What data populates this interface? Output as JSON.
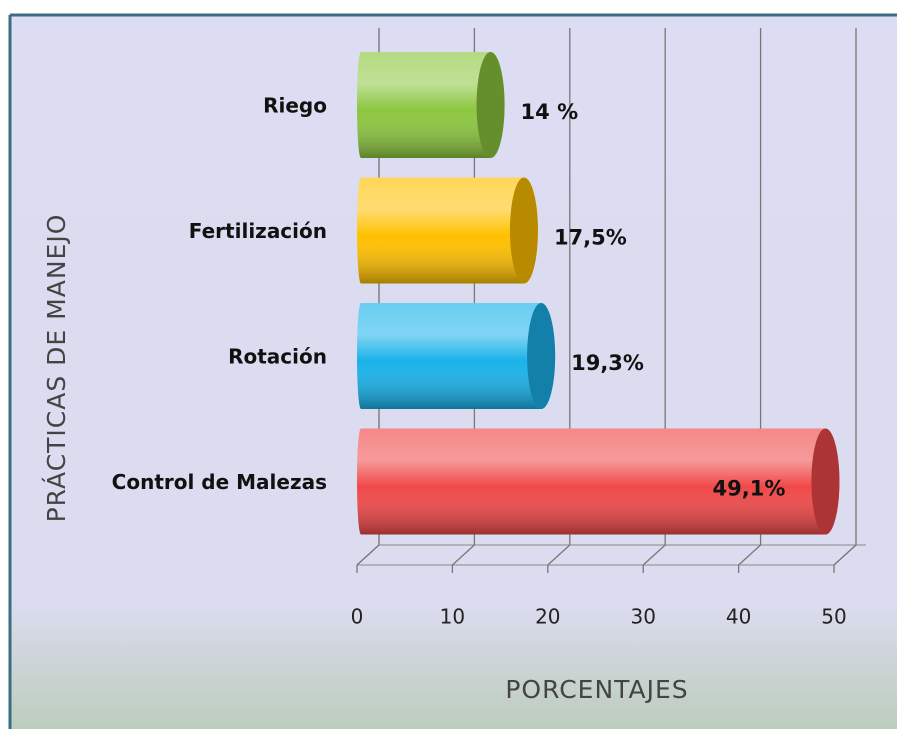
{
  "chart_data": {
    "type": "bar",
    "orientation": "horizontal",
    "x_label": "PORCENTAJES",
    "y_label": "PRÁCTICAS DE MANEJO",
    "categories": [
      "Riego",
      "Fertilización",
      "Rotación",
      "Control de Malezas"
    ],
    "series": [
      {
        "colors": [
          "#8cc63f",
          "#ffc000",
          "#19b2ea",
          "#f04848"
        ],
        "values": [
          14,
          17.5,
          19.3,
          49.1
        ],
        "value_labels": [
          "14 %",
          "17,5%",
          "19,3%",
          "49,1%"
        ]
      }
    ],
    "xlim": [
      0,
      50
    ],
    "xticks": [
      0,
      10,
      20,
      30,
      40,
      50
    ],
    "grid": true
  }
}
